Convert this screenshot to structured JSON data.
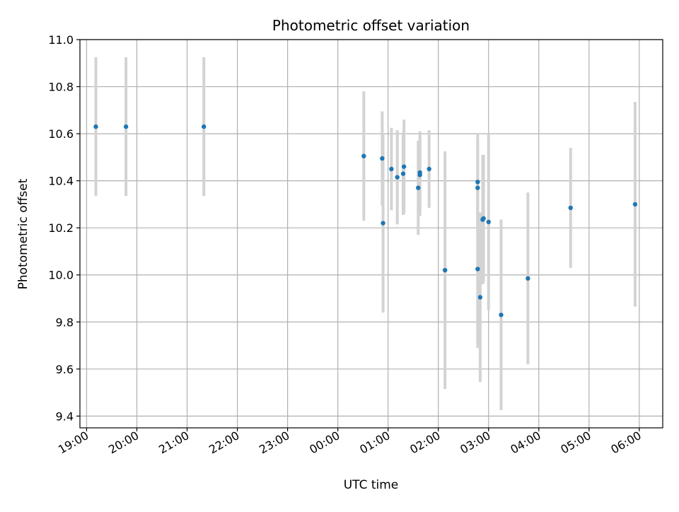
{
  "chart_data": {
    "type": "scatter",
    "title": "Photometric offset variation",
    "xlabel": "UTC time",
    "ylabel": "Photometric offset",
    "xlim": [
      "18:52",
      "06:28"
    ],
    "ylim": [
      9.35,
      11.0
    ],
    "x_ticks": [
      "19:00",
      "20:00",
      "21:00",
      "22:00",
      "23:00",
      "00:00",
      "01:00",
      "02:00",
      "03:00",
      "04:00",
      "05:00",
      "06:00"
    ],
    "y_ticks": [
      "9.4",
      "9.6",
      "9.8",
      "10.0",
      "10.2",
      "10.4",
      "10.6",
      "10.8",
      "11.0"
    ],
    "grid": true,
    "marker_color": "#1f77b4",
    "errorbar_color": "#d3d3d3",
    "series": [
      {
        "points": [
          {
            "x": "19:11",
            "y": 10.63,
            "err": 0.295
          },
          {
            "x": "19:47",
            "y": 10.63,
            "err": 0.295
          },
          {
            "x": "21:20",
            "y": 10.63,
            "err": 0.295
          },
          {
            "x": "00:31",
            "y": 10.505,
            "err": 0.275
          },
          {
            "x": "00:53",
            "y": 10.495,
            "err": 0.2
          },
          {
            "x": "00:54",
            "y": 10.22,
            "err": 0.38
          },
          {
            "x": "01:04",
            "y": 10.45,
            "err": 0.175
          },
          {
            "x": "01:11",
            "y": 10.415,
            "err": 0.2
          },
          {
            "x": "01:18",
            "y": 10.43,
            "err": 0.175
          },
          {
            "x": "01:19",
            "y": 10.46,
            "err": 0.2
          },
          {
            "x": "01:36",
            "y": 10.37,
            "err": 0.2
          },
          {
            "x": "01:38",
            "y": 10.435,
            "err": 0.175
          },
          {
            "x": "01:38",
            "y": 10.425,
            "err": 0.175
          },
          {
            "x": "01:49",
            "y": 10.45,
            "err": 0.165
          },
          {
            "x": "02:08",
            "y": 10.02,
            "err": 0.505
          },
          {
            "x": "02:47",
            "y": 10.395,
            "err": 0.205
          },
          {
            "x": "02:47",
            "y": 10.37,
            "err": 0.2
          },
          {
            "x": "02:47",
            "y": 10.025,
            "err": 0.335
          },
          {
            "x": "02:50",
            "y": 9.905,
            "err": 0.36
          },
          {
            "x": "02:53",
            "y": 10.235,
            "err": 0.275
          },
          {
            "x": "02:54",
            "y": 10.24,
            "err": 0.27
          },
          {
            "x": "03:00",
            "y": 10.225,
            "err": 0.375
          },
          {
            "x": "03:15",
            "y": 9.83,
            "err": 0.405
          },
          {
            "x": "03:47",
            "y": 9.985,
            "err": 0.365
          },
          {
            "x": "04:38",
            "y": 10.285,
            "err": 0.255
          },
          {
            "x": "05:55",
            "y": 10.3,
            "err": 0.435
          }
        ]
      }
    ]
  }
}
